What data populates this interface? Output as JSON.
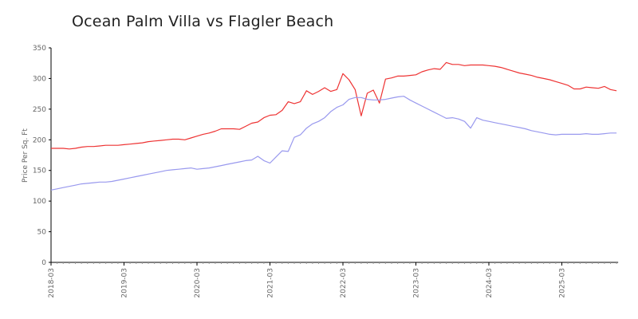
{
  "chart_data": {
    "type": "line",
    "title": "Ocean Palm Villa vs Flagler Beach",
    "xlabel": "",
    "ylabel": "Price Per Sq. Ft",
    "ylim": [
      0,
      350
    ],
    "yticks": [
      0,
      50,
      100,
      150,
      200,
      250,
      300,
      350
    ],
    "xtick_labels": [
      "2018-03",
      "2019-03",
      "2020-03",
      "2021-03",
      "2022-03",
      "2023-03",
      "2024-03",
      "2025-03"
    ],
    "x_start": "2018-03",
    "x_end": "2025-11",
    "x_interval": "monthly",
    "grid": false,
    "legend": null,
    "series": [
      {
        "name": "Ocean Palm Villa",
        "color": "#ee3333",
        "values": [
          186,
          186,
          186,
          185,
          186,
          188,
          189,
          189,
          190,
          191,
          191,
          191,
          192,
          193,
          194,
          195,
          197,
          198,
          199,
          200,
          201,
          201,
          200,
          203,
          206,
          209,
          211,
          214,
          218,
          218,
          218,
          217,
          222,
          227,
          229,
          236,
          240,
          241,
          248,
          262,
          259,
          262,
          280,
          274,
          279,
          285,
          279,
          282,
          308,
          298,
          282,
          239,
          276,
          281,
          260,
          299,
          301,
          304,
          304,
          305,
          306,
          311,
          314,
          316,
          315,
          326,
          323,
          323,
          321,
          322,
          322,
          322,
          321,
          320,
          318,
          315,
          312,
          309,
          307,
          305,
          302,
          300,
          298,
          295,
          292,
          289,
          283,
          283,
          286,
          285,
          284,
          287,
          282,
          280
        ]
      },
      {
        "name": "Flagler Beach",
        "color": "#9999ee",
        "values": [
          118,
          120,
          122,
          124,
          126,
          128,
          129,
          130,
          131,
          131,
          132,
          134,
          136,
          138,
          140,
          142,
          144,
          146,
          148,
          150,
          151,
          152,
          153,
          154,
          152,
          153,
          154,
          156,
          158,
          160,
          162,
          164,
          166,
          167,
          173,
          166,
          162,
          172,
          182,
          181,
          204,
          208,
          219,
          226,
          230,
          236,
          246,
          253,
          257,
          266,
          269,
          269,
          266,
          265,
          265,
          266,
          268,
          270,
          271,
          265,
          260,
          255,
          250,
          245,
          240,
          235,
          236,
          234,
          230,
          219,
          236,
          232,
          230,
          228,
          226,
          224,
          222,
          220,
          218,
          215,
          213,
          211,
          209,
          208,
          209,
          209,
          209,
          209,
          210,
          209,
          209,
          210,
          211,
          211
        ]
      }
    ]
  }
}
